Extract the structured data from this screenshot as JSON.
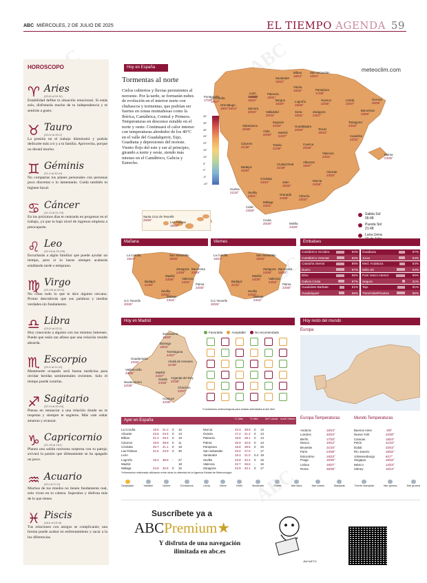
{
  "header": {
    "brand": "ABC",
    "date": "MIÉRCOLES, 2 DE JULIO DE 2025",
    "section": "EL TIEMPO",
    "subsection": "AGENDA",
    "page": "59"
  },
  "horoscope": {
    "title": "HOROSCOPO",
    "signs": [
      {
        "symbol": "♈",
        "name": "Aries",
        "dates": "(20-III al 19-IV)",
        "text": "Estabilidad define tu situación emocional. Si estás solo, disfrutarás mucho de tu independencia y te sentirás a gusto."
      },
      {
        "symbol": "♉",
        "name": "Tauro",
        "dates": "(20-IV al 20-V)",
        "text": "La presión en el trabajo disminuirá y podrás dedicarte más a ti y a tu familia. Aprovecha, porque no durará mucho."
      },
      {
        "symbol": "♊",
        "name": "Géminis",
        "dates": "(21-V al 20-VI)",
        "text": "No compartas tus planes personales con personas poco discretas o lo lamentarás. Cuida también tu higiene bucal."
      },
      {
        "symbol": "♋",
        "name": "Cáncer",
        "dates": "(21-VI al 21-VII)",
        "text": "En los próximos días te centrarás en progresar en el trabajo, ya que tu bajo nivel de ingresos empieza a preocuparte."
      },
      {
        "symbol": "♌",
        "name": "Leo",
        "dates": "(22-VII al 22-VIII)",
        "text": "Escucharás a algún familiar que puede ayudar un tiempo, pero si lo haces siempre acabarás estallando tarde o temprano."
      },
      {
        "symbol": "♍",
        "name": "Virgo",
        "dates": "(23-VIII al 22-IX)",
        "text": "No creas todo lo que te dice alguien cercano. Pronto descubrirás que sus palabras y medias verdades sin fundamento."
      },
      {
        "symbol": "♎",
        "name": "Libra",
        "dates": "(23-IX al 22-X)",
        "text": "Hoy conocerás a alguien con tus mismos intereses. Puede que seáis tan afines que una relación resulte absurda."
      },
      {
        "symbol": "♏",
        "name": "Escorpio",
        "dates": "(23-X al 21-XI)",
        "text": "Mantenerte ocupado será buena medicina para olvidar heridas sentimentales recientes. Solo el tiempo puede curarlas."
      },
      {
        "symbol": "♐",
        "name": "Sagitario",
        "dates": "(22-XI al 20-XII)",
        "text": "Piensa en renunciar a una relación donde no te respetan y siempre te sugieres. Más vale soltar amarras y avanzar."
      },
      {
        "symbol": "♑",
        "name": "Capricornio",
        "dates": "(21-XII al 19-I)",
        "text": "Planea una salida nocturna sorpresa con tu pareja; avivará la pasión que últimamente se ha apagado un poco."
      },
      {
        "symbol": "♒",
        "name": "Acuario",
        "dates": "(20-I al 17-II)",
        "text": "Muchos de tus miedos no tienen fundamento real, solo viven en tu cabeza. Superalos y disfruta más de lo que tienes."
      },
      {
        "symbol": "♓",
        "name": "Piscis",
        "dates": "(18-II al 19-III)",
        "text": "Tus relaciones con amigos se complicarán; una broma puede acabar en enfrentamiento y sacar a la luz diferencias."
      }
    ]
  },
  "today": {
    "label": "Hoy en España",
    "title": "Tormentas al norte",
    "text": "Cielos cubiertos y lluvias persistentes al noroeste. Por la tarde, se formarán nubes de evolución en el interior norte con chubascos y tormentas, que podrían ser fuertes en zonas montañosas como la Ibérica, Cantábrica, Central y Pirineos. Temperaturas en descenso notable en el norte y oeste. Continuará el calor intenso con temperaturas alrededor de los 40°C en el valle del Guadalquivir, Tajo, Guadiana y depresiones del noreste. Viento flojo del este y sur al principio, girando a norte y oeste, siendo más intenso en el Cantábrico, Galicia y Estrecho.",
    "source": "meteoclim.com",
    "scale": [
      "40°",
      "35°",
      "30°",
      "25°",
      "20°",
      "15°",
      "10°",
      "5°",
      "0°",
      "-5°",
      "-10°"
    ],
    "cities": [
      {
        "n": "La Coruña",
        "t": "15/17°"
      },
      {
        "n": "Lugo",
        "t": "15/14°"
      },
      {
        "n": "Oviedo",
        "t": "16/22°"
      },
      {
        "n": "Santander",
        "t": "16/22°"
      },
      {
        "n": "Bilbao",
        "t": "18/24°"
      },
      {
        "n": "San Sebastián",
        "t": "18/24°"
      },
      {
        "n": "Vitoria",
        "t": "15/25°"
      },
      {
        "n": "Pamplona",
        "t": "17/29°"
      },
      {
        "n": "Pontevedra",
        "t": "17/20°"
      },
      {
        "n": "Orense",
        "t": "18/27°"
      },
      {
        "n": "León",
        "t": "10/28°"
      },
      {
        "n": "Palencia",
        "t": "18/31°"
      },
      {
        "n": "Burgos",
        "t": "15/28°"
      },
      {
        "n": "Logroño",
        "t": "18/28°"
      },
      {
        "n": "Huesca",
        "t": "22/36°"
      },
      {
        "n": "Lérida",
        "t": "23/37°"
      },
      {
        "n": "Gerona",
        "t": "20/35°"
      },
      {
        "n": "Barcelona",
        "t": "23/29°"
      },
      {
        "n": "Zamora",
        "t": "20/33°"
      },
      {
        "n": "Valladolid",
        "t": "20/33°"
      },
      {
        "n": "Soria",
        "t": "18/31°"
      },
      {
        "n": "Zaragoza",
        "t": "24/37°"
      },
      {
        "n": "Tarragona",
        "t": "23/32°"
      },
      {
        "n": "Salamanca",
        "t": "20/35°"
      },
      {
        "n": "Segovia",
        "t": "22/33°"
      },
      {
        "n": "Guadalajara",
        "t": "20/36°"
      },
      {
        "n": "Teruel",
        "t": "19/34°"
      },
      {
        "n": "Castellón",
        "t": "22/32°"
      },
      {
        "n": "Ávila",
        "t": "20/30°"
      },
      {
        "n": "Madrid",
        "t": "24/37°"
      },
      {
        "n": "Cuenca",
        "t": "20/35°"
      },
      {
        "n": "Cáceres",
        "t": "21/38°"
      },
      {
        "n": "Toledo",
        "t": "21/39°"
      },
      {
        "n": "Valencia",
        "t": "23/31°"
      },
      {
        "n": "Palma",
        "t": "23/35°"
      },
      {
        "n": "Badajoz",
        "t": "20/40°"
      },
      {
        "n": "Ciudad Real",
        "t": "21/39°"
      },
      {
        "n": "Albacete",
        "t": "19/37°"
      },
      {
        "n": "Alicante",
        "t": "23/32°"
      },
      {
        "n": "Córdoba",
        "t": "24/44°"
      },
      {
        "n": "Jaén",
        "t": "26/39°"
      },
      {
        "n": "Murcia",
        "t": "24/38°"
      },
      {
        "n": "Huelva",
        "t": "21/33°"
      },
      {
        "n": "Sevilla",
        "t": "23/41°"
      },
      {
        "n": "Granada",
        "t": "24/38°"
      },
      {
        "n": "Almería",
        "t": "23/32°"
      },
      {
        "n": "Málaga",
        "t": "23/31°"
      },
      {
        "n": "Cádiz",
        "t": "23/28°"
      },
      {
        "n": "Ceuta",
        "t": "20/29°"
      },
      {
        "n": "Melilla",
        "t": "24/29°"
      }
    ],
    "canarias": [
      {
        "n": "Santa Cruz de Tenerife",
        "t": "20/25°"
      },
      {
        "n": "Las Palmas",
        "t": "19/23°"
      }
    ],
    "sun": [
      {
        "label": "Salida Sol",
        "time": "06:48"
      },
      {
        "label": "Puesta Sol",
        "time": "21:48"
      },
      {
        "label": "Luna Llena",
        "time": "10 de Julio"
      }
    ]
  },
  "manana": {
    "label": "Mañana",
    "cities": [
      {
        "n": "La Coruña",
        "t": "15/24°"
      },
      {
        "n": "San Sebastián",
        "t": "18/25°"
      },
      {
        "n": "Zaragoza",
        "t": "24/38°"
      },
      {
        "n": "Barcelona",
        "t": "23/29°"
      },
      {
        "n": "Madrid",
        "t": "23/38°"
      },
      {
        "n": "Valencia",
        "t": "24/31°"
      },
      {
        "n": "Palma",
        "t": "23/35°"
      },
      {
        "n": "Badajoz",
        "t": "21/40°"
      },
      {
        "n": "Sevilla",
        "t": "23/42°"
      },
      {
        "n": "Málaga",
        "t": "23/31°"
      },
      {
        "n": "S.C.Tenerife",
        "t": "20/25°"
      }
    ]
  },
  "viernes": {
    "label": "Viernes",
    "cities": [
      {
        "n": "La Coruña",
        "t": "16/24°"
      },
      {
        "n": "San Sebastián",
        "t": "18/25°"
      },
      {
        "n": "Zaragoza",
        "t": "24/38°"
      },
      {
        "n": "Barcelona",
        "t": "23/30°"
      },
      {
        "n": "Madrid",
        "t": "24/39°"
      },
      {
        "n": "Valencia",
        "t": "24/32°"
      },
      {
        "n": "Palma",
        "t": "23/35°"
      },
      {
        "n": "Badajoz",
        "t": "21/41°"
      },
      {
        "n": "Sevilla",
        "t": "24/43°"
      },
      {
        "n": "Málaga",
        "t": "23/31°"
      },
      {
        "n": "S.C.Tenerife",
        "t": "20/25°"
      }
    ]
  },
  "embalses": {
    "label": "Embalses",
    "left": [
      {
        "n": "Cantábrico Occiden.",
        "v": "84%"
      },
      {
        "n": "Cantábrico Oriental",
        "v": "82%"
      },
      {
        "n": "Cataluña interior",
        "v": "86%"
      },
      {
        "n": "Duero",
        "v": "87%"
      },
      {
        "n": "Ebro",
        "v": "85%"
      },
      {
        "n": "Galicia Costa",
        "v": "67%"
      },
      {
        "n": "Guadalete-Barbate",
        "v": "51%"
      },
      {
        "n": "Guadalquivir",
        "v": "56%"
      }
    ],
    "right": [
      {
        "n": "Guadiana",
        "v": "67%"
      },
      {
        "n": "Júcar",
        "v": "64%"
      },
      {
        "n": "Med. Andaluza",
        "v": "54%"
      },
      {
        "n": "Miño-Sil",
        "v": "84%"
      },
      {
        "n": "País Vasco Interior",
        "v": "90%"
      },
      {
        "n": "Segura",
        "v": "31%"
      },
      {
        "n": "Tajo",
        "v": "81%"
      },
      {
        "n": "Tinto/Odiel/Piedras",
        "v": "86%"
      }
    ]
  },
  "madrid": {
    "label": "Hoy en Madrid",
    "legend": [
      "Favorable",
      "Aceptable",
      "No recomendado"
    ],
    "cities": [
      {
        "n": "Somosierra",
        "t": "18/28°"
      },
      {
        "n": "Buitrago",
        "t": "19/33°"
      },
      {
        "n": "Torrelaguna",
        "t": "24/37°"
      },
      {
        "n": "Guadarrama",
        "t": "22/32°"
      },
      {
        "n": "Alcalá de Henares",
        "t": "21/38°"
      },
      {
        "n": "Valdemorillo",
        "t": "23/35°"
      },
      {
        "n": "Madrid",
        "t": "24/37°"
      },
      {
        "n": "Getafe",
        "t": "24/38°"
      },
      {
        "n": "Arganda del Rey",
        "t": "22/38°"
      },
      {
        "n": "Navalcarnero",
        "t": "22/39°"
      },
      {
        "n": "Chinchón",
        "t": "22/37°"
      },
      {
        "n": "Aranjuez",
        "t": "22/38°"
      }
    ],
    "note": "*Condiciones meteorológicas para realizar actividades al aire libre"
  },
  "world": {
    "label": "Hoy resto del mundo",
    "region": "Europa"
  },
  "ayer": {
    "label": "Ayer en España",
    "headers": [
      "°C Máx",
      "°C Mín",
      "l/m² Lluvia",
      "km/h Viento"
    ],
    "left": [
      [
        "La Coruña",
        "18.9",
        "21.2",
        "0",
        "15"
      ],
      [
        "Alicante",
        "23.5",
        "34.5",
        "0",
        "13"
      ],
      [
        "Bilbao",
        "21.2",
        "29.4",
        "0",
        "19"
      ],
      [
        "Cáceres",
        "19.9",
        "39.8",
        "0",
        "11"
      ],
      [
        "Córdoba",
        "25.7",
        "41.1",
        "0",
        "18"
      ],
      [
        "Las Palmas",
        "21.6",
        "23.9",
        "0",
        "30"
      ],
      [
        "León",
        "",
        "",
        "",
        ""
      ],
      [
        "Logroño",
        "16.2",
        "36.6",
        "-",
        "27"
      ],
      [
        "Madrid",
        "",
        "",
        "",
        "18"
      ],
      [
        "Málaga",
        "24.8",
        "32.6",
        "0",
        "15"
      ]
    ],
    "right": [
      [
        "Murcia",
        "23.3",
        "38.8",
        "0",
        "13"
      ],
      [
        "Oviedo",
        "17.2",
        "21.2",
        "0",
        "13"
      ],
      [
        "Palencia",
        "15.9",
        "28.1",
        "0",
        "13"
      ],
      [
        "Palma",
        "25.9",
        "32.9",
        "0",
        "13"
      ],
      [
        "Pamplona",
        "18.8",
        "39.5",
        "0",
        "33"
      ],
      [
        "San Sebastián",
        "23.0",
        "27.0",
        "-",
        "17"
      ],
      [
        "Santander",
        "19.3",
        "21.0",
        "0.4",
        "18"
      ],
      [
        "Sevilla",
        "23.9",
        "42.4",
        "0",
        "16"
      ],
      [
        "Valencia",
        "22.7",
        "36.6",
        "-",
        "16"
      ],
      [
        "Zaragoza",
        "23.9",
        "40.1",
        "0",
        "17"
      ]
    ],
    "note": "*Información elaborada utilizando entre otras la obtenida de la Agencia Estatal de Meteorología"
  },
  "temps": {
    "europa_title": "Europa Temperaturas",
    "mundo_title": "Mundo Temperaturas",
    "europa": [
      [
        "Andorra",
        "16/24°",
        "Londres",
        "20/34°"
      ],
      [
        "Berlín",
        "17/33°",
        "Moscú",
        "10/12°"
      ],
      [
        "Bruselas",
        "21/34°",
        "París",
        "23/39°"
      ],
      [
        "Estocolmo",
        "16/23°",
        "Praga",
        "16/30°"
      ],
      [
        "Lisboa",
        "18/27°",
        "Roma",
        "25/36°"
      ]
    ],
    "mundo": [
      [
        "Buenos Aires",
        "-2/9°",
        "Nueva York",
        "22/30°"
      ],
      [
        "Caracas",
        "18/24°",
        "Pekín",
        "21/34°"
      ],
      [
        "Dubái",
        "32/42°",
        "Río Janeiro",
        "18/32°"
      ],
      [
        "Johannesburgo",
        "6/17°",
        "Singapur",
        "26/32°"
      ],
      [
        "México",
        "12/23°",
        "Sidney",
        "10/14°"
      ]
    ]
  },
  "weather_legend": [
    "Despejado",
    "Variable",
    "Nubes",
    "Chubascos",
    "Lluvia",
    "Nieve",
    "Débil",
    "Moderado",
    "Fuerte",
    "Mar llana",
    "Mar rizada",
    "Marejada",
    "Fuerte marejada",
    "Mar gruesa",
    "Mar gruesa"
  ],
  "ad": {
    "line1": "Suscríbete ya a",
    "brand": "ABC",
    "brand2": "Premium",
    "line2": "Y disfruta de una navegación",
    "line3": "ilimitada en abc.es",
    "signature": "JIM NIETO"
  },
  "colors": {
    "accent": "#8a1538",
    "map": "#e3a164",
    "horo_bg": "#f5f0e8"
  }
}
